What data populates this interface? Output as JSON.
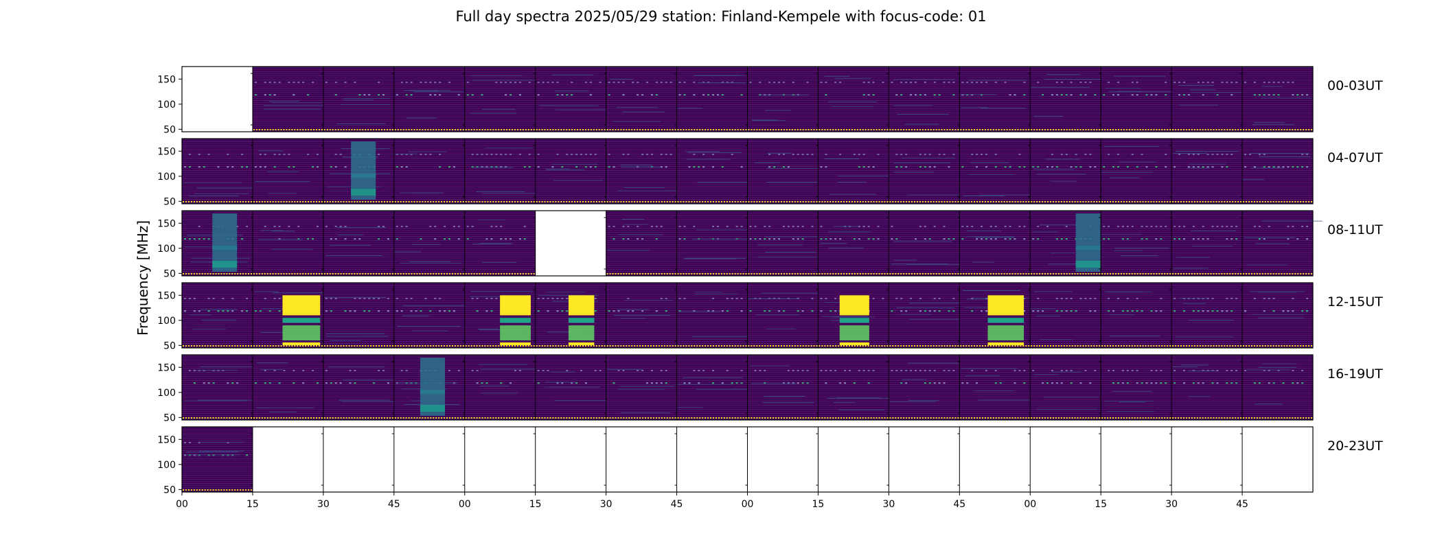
{
  "chart_data": {
    "type": "heatmap",
    "title": "Full day spectra 2025/05/29 station: Finland-Kempele with focus-code: 01",
    "ylabel": "Frequency [MHz]",
    "y_ticks": [
      "150",
      "100",
      "50"
    ],
    "x_ticks": [
      "00",
      "15",
      "30",
      "45",
      "00",
      "15",
      "30",
      "45",
      "00",
      "15",
      "30",
      "45",
      "00",
      "15",
      "30",
      "45"
    ],
    "row_labels": [
      "00-03UT",
      "04-07UT",
      "08-11UT",
      "12-15UT",
      "16-19UT",
      "20-23UT"
    ],
    "columns_per_row": 16,
    "frequency_range_mhz": [
      45,
      175
    ],
    "colormap": [
      "#440154",
      "#3b528b",
      "#21918c",
      "#5ec962",
      "#fde725"
    ],
    "panel_state_note": "0 = no data (white), 1 = quiet background, 2 = moderate activity, 3 = broadband burst / saturated",
    "panel_intensity": [
      [
        0,
        1,
        1,
        1,
        1,
        1,
        1,
        1,
        1,
        1,
        1,
        1,
        1,
        1,
        1,
        1
      ],
      [
        1,
        1,
        2,
        1,
        1,
        1,
        1,
        1,
        1,
        1,
        1,
        1,
        1,
        1,
        1,
        1
      ],
      [
        2,
        1,
        1,
        1,
        1,
        0,
        1,
        1,
        1,
        1,
        1,
        1,
        2,
        1,
        1,
        1
      ],
      [
        1,
        3,
        1,
        1,
        3,
        3,
        1,
        1,
        1,
        3,
        1,
        3,
        1,
        1,
        1,
        1
      ],
      [
        1,
        1,
        1,
        2,
        1,
        1,
        1,
        1,
        1,
        1,
        1,
        1,
        1,
        1,
        1,
        1
      ],
      [
        1,
        0,
        0,
        0,
        0,
        0,
        0,
        0,
        0,
        0,
        0,
        0,
        0,
        0,
        0,
        0
      ]
    ]
  }
}
